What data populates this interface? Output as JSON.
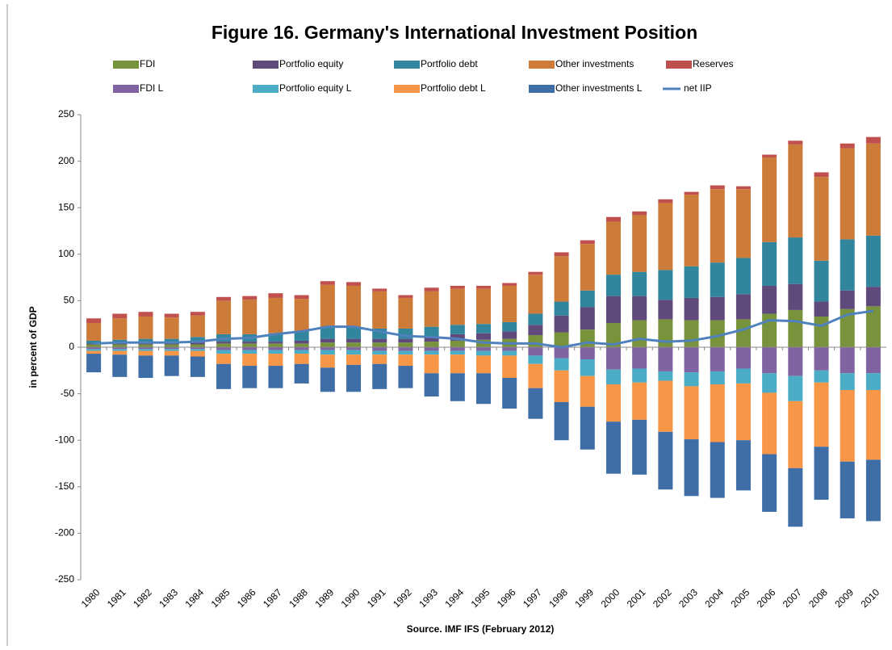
{
  "chart_data": {
    "type": "bar",
    "stacked": true,
    "title": "Figure 16. Germany's International Investment Position",
    "x_label": "Source. IMF IFS (February 2012)",
    "y_label": "in percent of GDP",
    "categories": [
      "1980",
      "1981",
      "1982",
      "1983",
      "1984",
      "1985",
      "1986",
      "1987",
      "1988",
      "1989",
      "1990",
      "1991",
      "1992",
      "1993",
      "1994",
      "1995",
      "1996",
      "1997",
      "1998",
      "1999",
      "2000",
      "2001",
      "2002",
      "2003",
      "2004",
      "2005",
      "2006",
      "2007",
      "2008",
      "2009",
      "2010"
    ],
    "ylim": [
      -250,
      250
    ],
    "yticks": [
      -250,
      -200,
      -150,
      -100,
      -50,
      0,
      50,
      100,
      150,
      200,
      250
    ],
    "grid": false,
    "series": [
      {
        "name": "FDI",
        "color": "#77933c",
        "values": [
          3,
          3,
          3,
          3,
          3,
          4,
          4,
          4,
          4,
          5,
          5,
          5,
          5,
          6,
          7,
          8,
          9,
          13,
          16,
          19,
          26,
          29,
          30,
          29,
          29,
          30,
          36,
          40,
          33,
          41,
          44
        ]
      },
      {
        "name": "Portfolio equity",
        "color": "#604a7b",
        "values": [
          1,
          1,
          1,
          1,
          2,
          2,
          2,
          2,
          3,
          4,
          4,
          4,
          4,
          4,
          7,
          7,
          8,
          11,
          18,
          24,
          29,
          26,
          21,
          24,
          25,
          27,
          30,
          28,
          16,
          20,
          21
        ]
      },
      {
        "name": "Portfolio debt",
        "color": "#31859c",
        "values": [
          3,
          4,
          5,
          5,
          6,
          8,
          8,
          9,
          10,
          12,
          12,
          11,
          11,
          12,
          10,
          10,
          10,
          12,
          15,
          18,
          23,
          26,
          32,
          34,
          37,
          39,
          47,
          50,
          44,
          55,
          55
        ]
      },
      {
        "name": "Other investments",
        "color": "#cc7b38",
        "values": [
          19,
          23,
          24,
          23,
          23,
          36,
          37,
          38,
          35,
          46,
          45,
          40,
          33,
          38,
          39,
          38,
          39,
          42,
          49,
          50,
          57,
          61,
          72,
          77,
          79,
          74,
          91,
          100,
          90,
          98,
          99
        ]
      },
      {
        "name": "Reserves",
        "color": "#c0504d",
        "values": [
          5,
          5,
          5,
          4,
          4,
          4,
          4,
          5,
          4,
          4,
          4,
          3,
          3,
          4,
          3,
          3,
          3,
          3,
          4,
          4,
          5,
          4,
          4,
          3,
          4,
          3,
          3,
          4,
          5,
          5,
          7
        ]
      },
      {
        "name": "FDI L",
        "color": "#8064a2",
        "values": [
          -2,
          -2,
          -2,
          -2,
          -2,
          -3,
          -3,
          -3,
          -3,
          -3,
          -3,
          -4,
          -4,
          -4,
          -4,
          -4,
          -4,
          -9,
          -12,
          -13,
          -24,
          -23,
          -26,
          -27,
          -26,
          -23,
          -28,
          -31,
          -25,
          -28,
          -28
        ]
      },
      {
        "name": "Portfolio equity L",
        "color": "#4bacc6",
        "values": [
          -2,
          -2,
          -2,
          -2,
          -2,
          -4,
          -4,
          -4,
          -4,
          -5,
          -5,
          -4,
          -4,
          -4,
          -4,
          -5,
          -5,
          -9,
          -13,
          -18,
          -16,
          -15,
          -10,
          -15,
          -14,
          -16,
          -21,
          -27,
          -13,
          -18,
          -18
        ]
      },
      {
        "name": "Portfolio debt L",
        "color": "#f79646",
        "values": [
          -3,
          -4,
          -5,
          -5,
          -6,
          -11,
          -13,
          -13,
          -11,
          -14,
          -11,
          -10,
          -12,
          -20,
          -20,
          -19,
          -24,
          -26,
          -34,
          -33,
          -40,
          -40,
          -55,
          -57,
          -62,
          -61,
          -66,
          -72,
          -69,
          -77,
          -75
        ]
      },
      {
        "name": "Other investments L",
        "color": "#3f6ea6",
        "values": [
          -20,
          -24,
          -24,
          -22,
          -22,
          -27,
          -24,
          -24,
          -21,
          -26,
          -29,
          -27,
          -24,
          -25,
          -30,
          -33,
          -33,
          -33,
          -41,
          -46,
          -56,
          -59,
          -62,
          -61,
          -60,
          -54,
          -62,
          -63,
          -57,
          -61,
          -66
        ]
      },
      {
        "name": "net IIP",
        "color": "#4f81bd",
        "type": "line",
        "values": [
          4,
          5,
          5,
          5,
          6,
          9,
          10,
          14,
          17,
          22,
          22,
          17,
          12,
          11,
          9,
          5,
          4,
          4,
          0,
          5,
          3,
          9,
          6,
          7,
          12,
          19,
          29,
          28,
          23,
          35,
          39
        ]
      }
    ]
  }
}
